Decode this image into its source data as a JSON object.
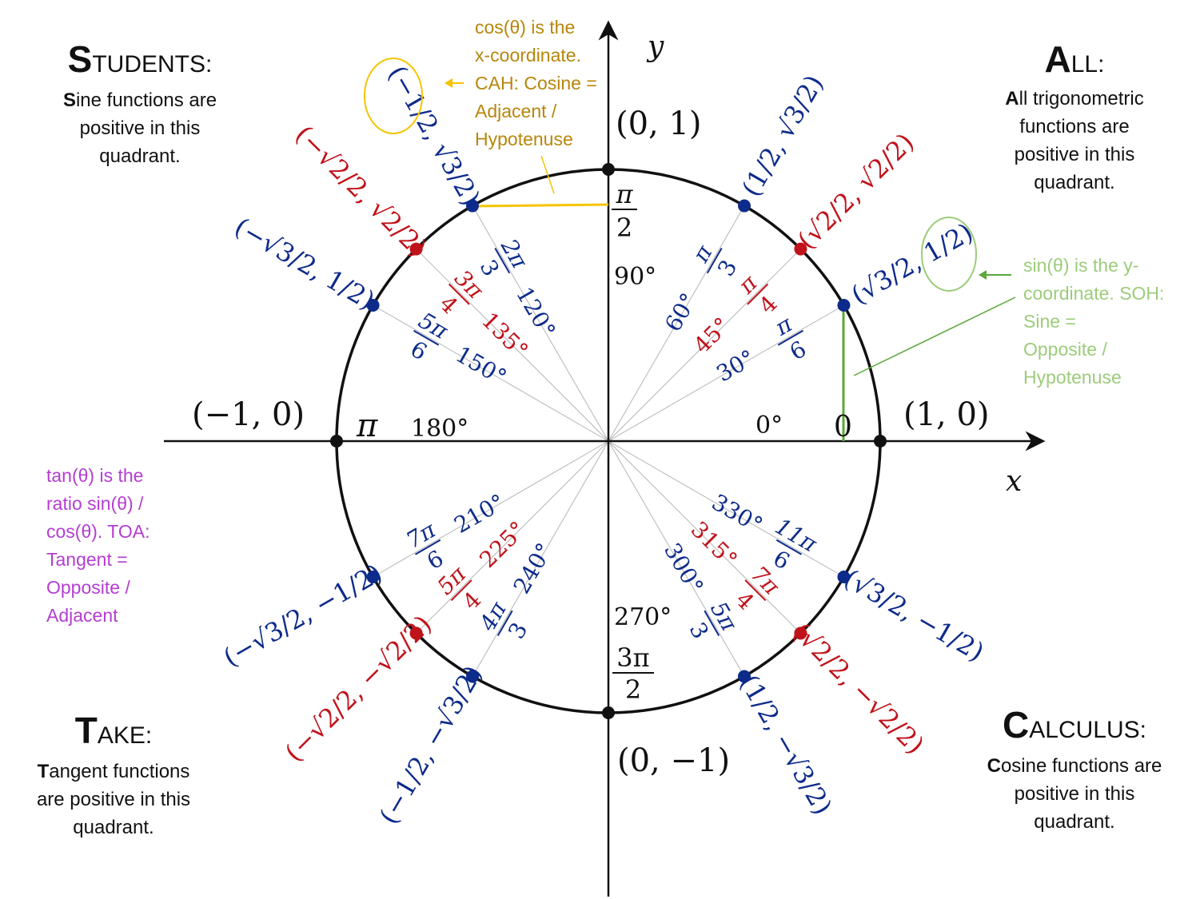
{
  "axes": {
    "x_label": "x",
    "y_label": "y"
  },
  "colors": {
    "blue": "#0d2b8a",
    "red": "#c0121a",
    "black": "#111111",
    "cos_note": "#b8860b",
    "cos_line": "#f5c400",
    "sin_note": "#9ccc7a",
    "sin_line": "#5aa83a",
    "tan_note": "#b43ed1"
  },
  "axis_points": [
    {
      "coord": "(1, 0)",
      "radian": "0",
      "degree": "0°"
    },
    {
      "coord": "(0, 1)",
      "radian_num": "π",
      "radian_den": "2",
      "degree": "90°"
    },
    {
      "coord": "(−1, 0)",
      "radian": "π",
      "degree": "180°"
    },
    {
      "coord": "(0, −1)",
      "radian_num": "3π",
      "radian_den": "2",
      "degree": "270°"
    }
  ],
  "angles": [
    {
      "deg": 30,
      "degree": "30°",
      "radian": "π/6",
      "coord": "(√3/2, 1/2)",
      "color": "blue"
    },
    {
      "deg": 45,
      "degree": "45°",
      "radian": "π/4",
      "coord": "(√2/2, √2/2)",
      "color": "red"
    },
    {
      "deg": 60,
      "degree": "60°",
      "radian": "π/3",
      "coord": "(1/2, √3/2)",
      "color": "blue"
    },
    {
      "deg": 120,
      "degree": "120°",
      "radian": "2π/3",
      "coord": "(−1/2, √3/2)",
      "color": "blue"
    },
    {
      "deg": 135,
      "degree": "135°",
      "radian": "3π/4",
      "coord": "(−√2/2, √2/2)",
      "color": "red"
    },
    {
      "deg": 150,
      "degree": "150°",
      "radian": "5π/6",
      "coord": "(−√3/2, 1/2)",
      "color": "blue"
    },
    {
      "deg": 210,
      "degree": "210°",
      "radian": "7π/6",
      "coord": "(−√3/2, −1/2)",
      "color": "blue"
    },
    {
      "deg": 225,
      "degree": "225°",
      "radian": "5π/4",
      "coord": "(−√2/2, −√2/2)",
      "color": "red"
    },
    {
      "deg": 240,
      "degree": "240°",
      "radian": "4π/3",
      "coord": "(−1/2, −√3/2)",
      "color": "blue"
    },
    {
      "deg": 300,
      "degree": "300°",
      "radian": "5π/3",
      "coord": "(1/2, −√3/2)",
      "color": "blue"
    },
    {
      "deg": 315,
      "degree": "315°",
      "radian": "7π/4",
      "coord": "(√2/2, −√2/2)",
      "color": "red"
    },
    {
      "deg": 330,
      "degree": "330°",
      "radian": "11π/6",
      "coord": "(√3/2, −1/2)",
      "color": "blue"
    }
  ],
  "quadrants": {
    "students": {
      "title_initial": "S",
      "title_rest": "TUDENTS:",
      "body_initial": "S",
      "body_lines": [
        "ine functions are",
        "positive in this",
        "quadrant."
      ]
    },
    "all": {
      "title_initial": "A",
      "title_rest": "LL:",
      "body_initial": "A",
      "body_lines": [
        "ll trigonometric",
        "functions are",
        "positive in this",
        "quadrant."
      ]
    },
    "take": {
      "title_initial": "T",
      "title_rest": "AKE:",
      "body_initial": "T",
      "body_lines": [
        "angent functions",
        "are positive in this",
        "quadrant."
      ]
    },
    "calculus": {
      "title_initial": "C",
      "title_rest": "ALCULUS:",
      "body_initial": "C",
      "body_lines": [
        "osine functions are",
        "positive in this",
        "quadrant."
      ]
    }
  },
  "notes": {
    "cos": [
      "cos(θ) is the",
      "x-coordinate.",
      "CAH: Cosine =",
      "Adjacent /",
      "Hypotenuse"
    ],
    "sin": [
      "sin(θ) is the y-",
      "coordinate. SOH:",
      "Sine =",
      "Opposite /",
      "Hypotenuse"
    ],
    "tan": [
      "tan(θ) is the",
      "ratio sin(θ) /",
      "cos(θ). TOA:",
      "Tangent =",
      "Opposite /",
      "Adjacent"
    ]
  }
}
